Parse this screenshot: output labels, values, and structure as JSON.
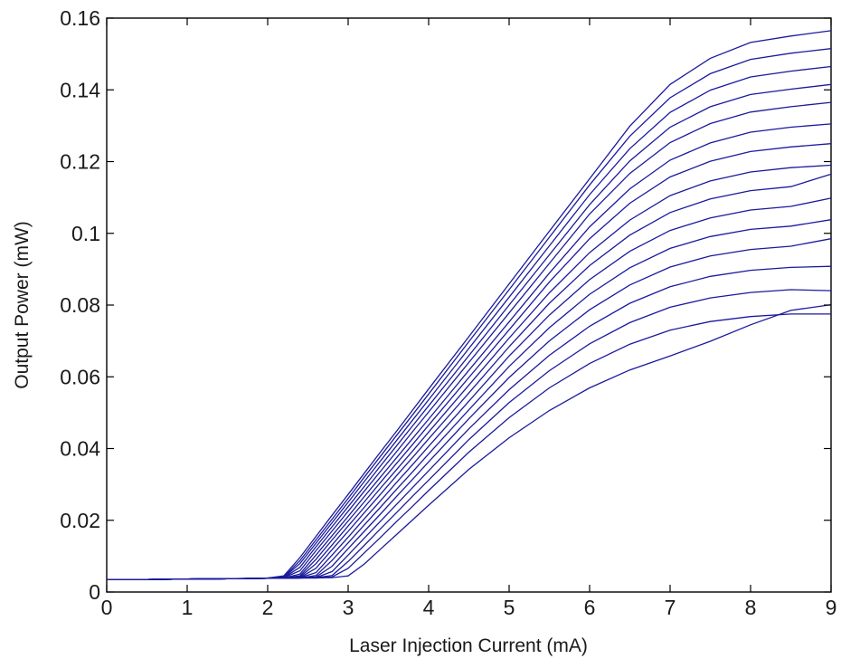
{
  "chart_data": {
    "type": "line",
    "title": "",
    "xlabel": "Laser Injection Current (mA)",
    "ylabel": "Output Power (mW)",
    "xlim": [
      0,
      9
    ],
    "ylim": [
      0,
      0.16
    ],
    "xticks": [
      0,
      1,
      2,
      3,
      4,
      5,
      6,
      7,
      8,
      9
    ],
    "xtick_labels": [
      "0",
      "1",
      "2",
      "3",
      "4",
      "5",
      "6",
      "7",
      "8",
      "9"
    ],
    "yticks": [
      0,
      0.02,
      0.04,
      0.06,
      0.08,
      0.1,
      0.12,
      0.14,
      0.16
    ],
    "ytick_labels": [
      "0",
      "0.02",
      "0.04",
      "0.06",
      "0.08",
      "0.1",
      "0.12",
      "0.14",
      "0.16"
    ],
    "grid": false,
    "legend": "none",
    "line_color": "#1a1a9c",
    "x": [
      0,
      0.5,
      1,
      1.5,
      2,
      2.2,
      2.4,
      2.6,
      2.8,
      3,
      3.2,
      3.4,
      3.6,
      3.8,
      4,
      4.5,
      5,
      5.5,
      6,
      6.5,
      7,
      7.5,
      8,
      8.5,
      9
    ],
    "series": [
      {
        "values": [
          0.0035,
          0.0035,
          0.0036,
          0.0037,
          0.0039,
          0.0045,
          0.0096,
          0.0155,
          0.0214,
          0.0272,
          0.0331,
          0.039,
          0.0448,
          0.0507,
          0.0566,
          0.0712,
          0.0859,
          0.1006,
          0.1152,
          0.1299,
          0.1415,
          0.1488,
          0.1532,
          0.155,
          0.1565
        ]
      },
      {
        "values": [
          0.0035,
          0.0035,
          0.0036,
          0.0037,
          0.0039,
          0.0042,
          0.0087,
          0.0145,
          0.0203,
          0.0261,
          0.032,
          0.0378,
          0.0436,
          0.0494,
          0.0552,
          0.0698,
          0.0843,
          0.0989,
          0.1135,
          0.1271,
          0.1378,
          0.1445,
          0.1485,
          0.1502,
          0.1515
        ]
      },
      {
        "values": [
          0.0035,
          0.0035,
          0.0036,
          0.0037,
          0.0038,
          0.0041,
          0.0079,
          0.0136,
          0.0193,
          0.025,
          0.0308,
          0.0365,
          0.0422,
          0.0479,
          0.0536,
          0.0679,
          0.0822,
          0.0965,
          0.1108,
          0.1236,
          0.1337,
          0.1399,
          0.1436,
          0.1452,
          0.1465
        ]
      },
      {
        "values": [
          0.0035,
          0.0035,
          0.0036,
          0.0037,
          0.0038,
          0.004,
          0.0069,
          0.0126,
          0.0182,
          0.0238,
          0.0294,
          0.0351,
          0.0407,
          0.0463,
          0.0519,
          0.0659,
          0.08,
          0.094,
          0.108,
          0.1202,
          0.1296,
          0.1353,
          0.1387,
          0.1402,
          0.1415
        ]
      },
      {
        "values": [
          0.0035,
          0.0035,
          0.0036,
          0.0037,
          0.0038,
          0.004,
          0.0059,
          0.0115,
          0.017,
          0.0225,
          0.0281,
          0.0336,
          0.0391,
          0.0447,
          0.0502,
          0.064,
          0.0778,
          0.0916,
          0.1054,
          0.1167,
          0.1253,
          0.1306,
          0.1338,
          0.1353,
          0.1365
        ]
      },
      {
        "values": [
          0.0035,
          0.0035,
          0.0036,
          0.0037,
          0.0038,
          0.0039,
          0.005,
          0.0103,
          0.0157,
          0.0211,
          0.0266,
          0.032,
          0.0374,
          0.0428,
          0.0482,
          0.0618,
          0.0753,
          0.0889,
          0.1018,
          0.1124,
          0.1204,
          0.1252,
          0.1282,
          0.1296,
          0.1305
        ]
      },
      {
        "values": [
          0.0035,
          0.0035,
          0.0036,
          0.0037,
          0.0038,
          0.0039,
          0.0045,
          0.0091,
          0.0145,
          0.0198,
          0.0251,
          0.0305,
          0.0358,
          0.0411,
          0.0465,
          0.0598,
          0.0731,
          0.0864,
          0.0985,
          0.1084,
          0.1157,
          0.1201,
          0.1228,
          0.1241,
          0.125
        ]
      },
      {
        "values": [
          0.0035,
          0.0035,
          0.0036,
          0.0037,
          0.0038,
          0.0039,
          0.0042,
          0.0079,
          0.0131,
          0.0184,
          0.0236,
          0.0289,
          0.0341,
          0.0393,
          0.0446,
          0.0577,
          0.0708,
          0.0834,
          0.0946,
          0.1037,
          0.1105,
          0.1146,
          0.1171,
          0.1183,
          0.119
        ]
      },
      {
        "values": [
          0.0035,
          0.0035,
          0.0036,
          0.0037,
          0.0038,
          0.0038,
          0.004,
          0.0066,
          0.0118,
          0.0169,
          0.0221,
          0.0272,
          0.0324,
          0.0375,
          0.0427,
          0.0555,
          0.0684,
          0.0805,
          0.091,
          0.0995,
          0.1058,
          0.1096,
          0.1119,
          0.113,
          0.1165
        ]
      },
      {
        "values": [
          0.0035,
          0.0035,
          0.0036,
          0.0037,
          0.0038,
          0.0038,
          0.004,
          0.0054,
          0.0103,
          0.0153,
          0.0204,
          0.0254,
          0.0305,
          0.0355,
          0.0406,
          0.0532,
          0.0658,
          0.0772,
          0.0871,
          0.095,
          0.1008,
          0.1043,
          0.1065,
          0.1075,
          0.1098
        ]
      },
      {
        "values": [
          0.0035,
          0.0035,
          0.0036,
          0.0037,
          0.0038,
          0.0038,
          0.0039,
          0.0046,
          0.0088,
          0.0137,
          0.0187,
          0.0236,
          0.0286,
          0.0335,
          0.0385,
          0.0508,
          0.0629,
          0.0737,
          0.083,
          0.0904,
          0.0958,
          0.0991,
          0.1011,
          0.102,
          0.1038
        ]
      },
      {
        "values": [
          0.0035,
          0.0035,
          0.0036,
          0.0037,
          0.0038,
          0.0038,
          0.0039,
          0.0042,
          0.0072,
          0.0121,
          0.0169,
          0.0217,
          0.0266,
          0.0314,
          0.0363,
          0.0483,
          0.0598,
          0.07,
          0.0787,
          0.0856,
          0.0906,
          0.0937,
          0.0955,
          0.0964,
          0.0985
        ]
      },
      {
        "values": [
          0.0035,
          0.0035,
          0.0036,
          0.0037,
          0.0038,
          0.0038,
          0.0039,
          0.004,
          0.0057,
          0.0103,
          0.015,
          0.0197,
          0.0244,
          0.0291,
          0.0338,
          0.0455,
          0.0564,
          0.066,
          0.0741,
          0.0805,
          0.0851,
          0.088,
          0.0897,
          0.0905,
          0.0908
        ]
      },
      {
        "values": [
          0.0035,
          0.0035,
          0.0036,
          0.0037,
          0.0038,
          0.0038,
          0.0039,
          0.004,
          0.0046,
          0.0085,
          0.013,
          0.0176,
          0.0221,
          0.0267,
          0.0312,
          0.0425,
          0.0528,
          0.0617,
          0.0692,
          0.0751,
          0.0794,
          0.082,
          0.0835,
          0.0843,
          0.084
        ]
      },
      {
        "values": [
          0.0035,
          0.0035,
          0.0036,
          0.0037,
          0.0038,
          0.0038,
          0.0039,
          0.0039,
          0.0042,
          0.0066,
          0.0109,
          0.0152,
          0.0196,
          0.0239,
          0.0283,
          0.039,
          0.0486,
          0.0569,
          0.0637,
          0.0691,
          0.073,
          0.0754,
          0.0768,
          0.0775,
          0.0775
        ]
      },
      {
        "values": [
          0.0035,
          0.0035,
          0.0036,
          0.0037,
          0.0038,
          0.0038,
          0.0039,
          0.0039,
          0.004,
          0.0045,
          0.0078,
          0.0119,
          0.016,
          0.0201,
          0.0242,
          0.0342,
          0.043,
          0.0506,
          0.0569,
          0.0619,
          0.0658,
          0.0699,
          0.0745,
          0.0785,
          0.0801
        ]
      }
    ]
  }
}
